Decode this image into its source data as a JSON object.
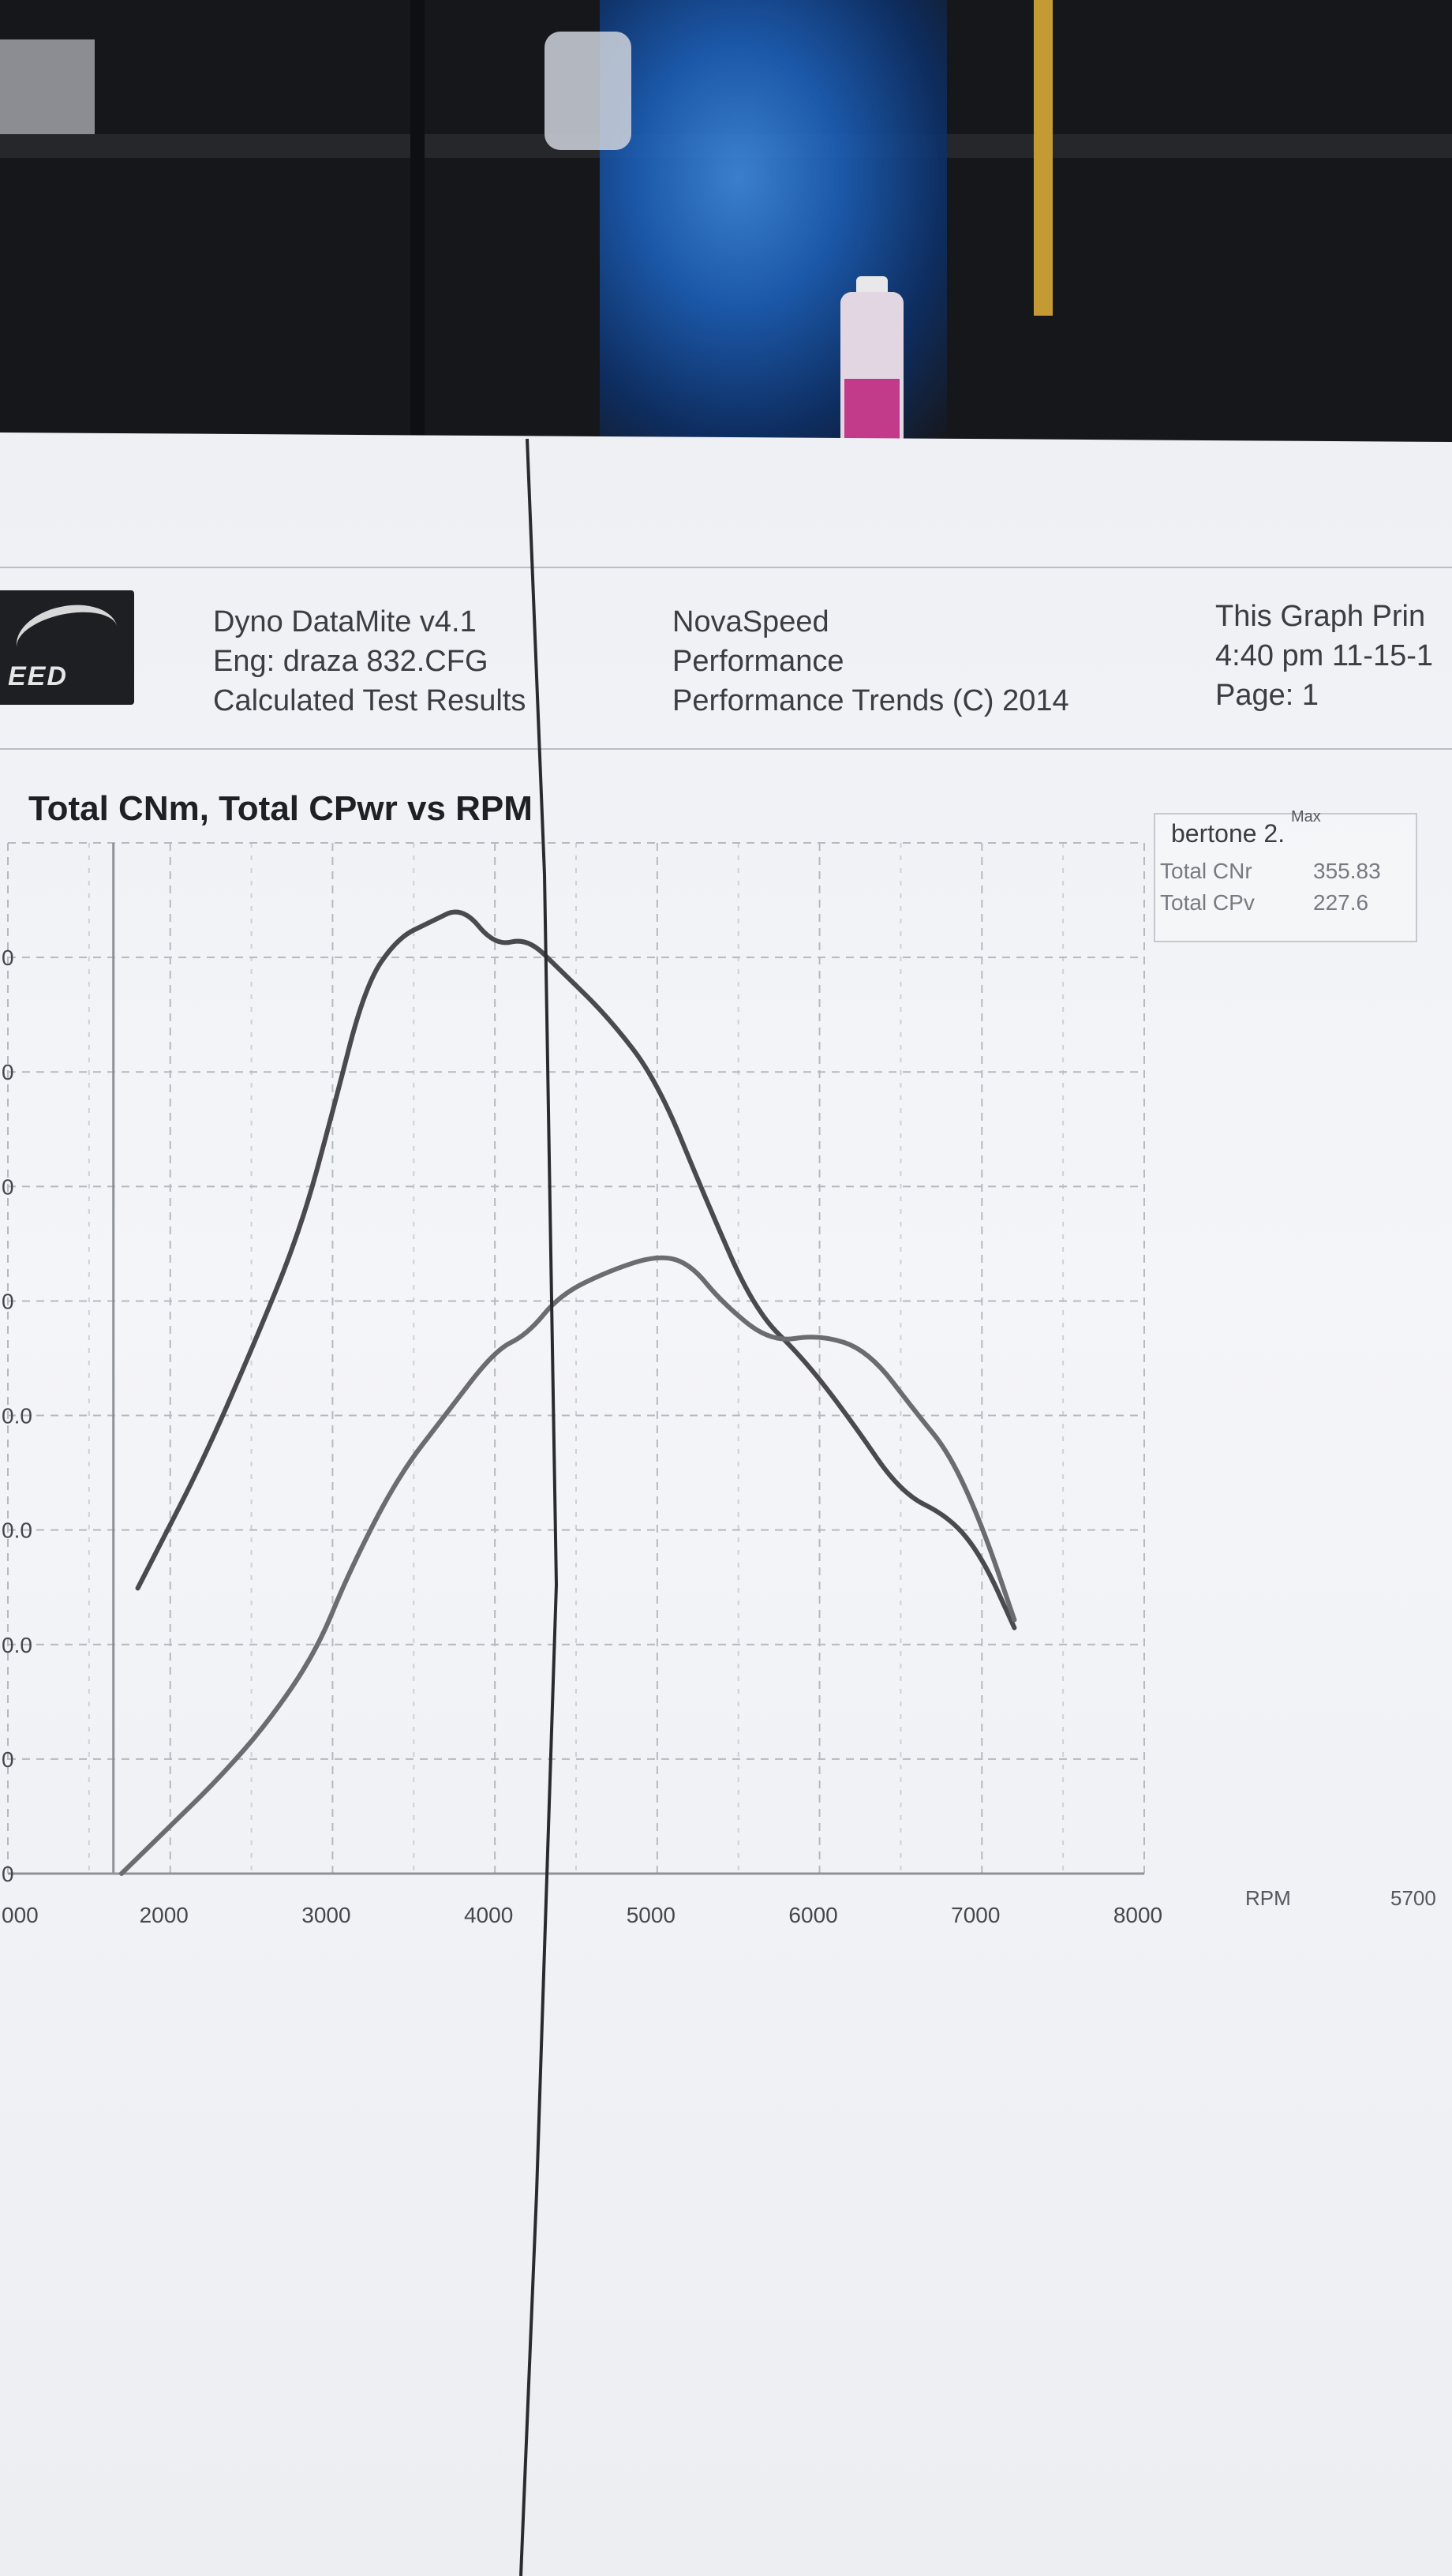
{
  "header": {
    "app": "Dyno DataMite v4.1",
    "engine": "Eng: draza 832.CFG",
    "results": "Calculated Test Results",
    "company": "NovaSpeed",
    "company_sub": "Performance",
    "copyright": "Performance Trends (C) 2014",
    "printed": "This Graph Prin",
    "time": "4:40 pm 11-15-1",
    "page": "Page: 1"
  },
  "logo_text": "EED",
  "chart_data": {
    "type": "line",
    "title": "Total CNm, Total CPwr vs RPM",
    "xlabel": "RPM",
    "x_right_label": "5700",
    "xlim": [
      1000,
      8000
    ],
    "x_ticks": [
      "000",
      "2000",
      "3000",
      "4000",
      "5000",
      "6000",
      "7000",
      "8000"
    ],
    "y_ticks": [
      "0",
      "0",
      "0.0",
      "0.0",
      "0.0",
      "0",
      "0",
      "0",
      "0",
      ""
    ],
    "grid": true,
    "legend": {
      "title": "bertone 2.",
      "max_label": "Max",
      "entries": [
        {
          "label": "Total CNr",
          "value": "355.83"
        },
        {
          "label": "Total CPv",
          "value": "227.6"
        }
      ]
    },
    "series": [
      {
        "key": "torque",
        "x": [
          1800,
          1900,
          2200,
          2500,
          2800,
          3000,
          3200,
          3400,
          3600,
          3800,
          4000,
          4200,
          4400,
          4700,
          5000,
          5300,
          5600,
          5900,
          6200,
          6500,
          6800,
          7000,
          7200
        ],
        "y": [
          0.36,
          0.4,
          0.52,
          0.66,
          0.81,
          0.96,
          1.12,
          1.18,
          1.2,
          1.22,
          1.17,
          1.18,
          1.14,
          1.08,
          1.0,
          0.85,
          0.71,
          0.65,
          0.57,
          0.48,
          0.45,
          0.4,
          0.31
        ],
        "color": "#4a4a4e"
      },
      {
        "key": "power",
        "x": [
          1700,
          2000,
          2300,
          2600,
          2900,
          3100,
          3400,
          3700,
          4000,
          4200,
          4400,
          4700,
          5000,
          5200,
          5400,
          5700,
          6000,
          6300,
          6600,
          6800,
          7000,
          7200
        ],
        "y": [
          0.0,
          0.06,
          0.12,
          0.19,
          0.28,
          0.38,
          0.5,
          0.58,
          0.66,
          0.68,
          0.73,
          0.76,
          0.78,
          0.77,
          0.72,
          0.67,
          0.68,
          0.66,
          0.58,
          0.53,
          0.44,
          0.32
        ],
        "color": "#6c6c70"
      }
    ]
  }
}
